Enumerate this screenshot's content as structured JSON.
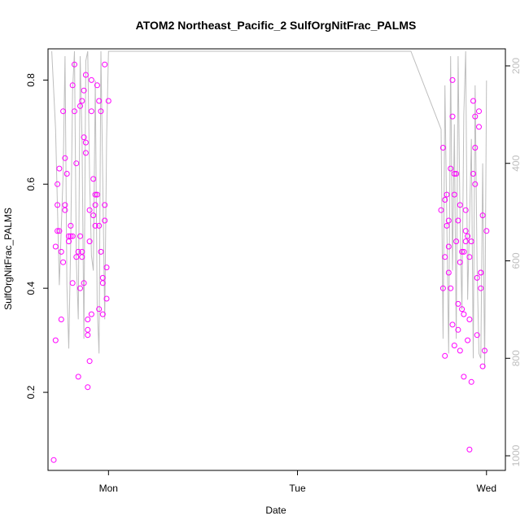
{
  "chart_data": {
    "type": "scatter",
    "title": "ATOM2 Northeast_Pacific_2 SulfOrgNitFrac_PALMS",
    "xlabel": "Date",
    "ylabel": "SulfOrgNitFrac_PALMS",
    "x_ticks": [
      {
        "value": 1.0,
        "label": "Mon"
      },
      {
        "value": 2.0,
        "label": "Tue"
      },
      {
        "value": 3.0,
        "label": "Wed"
      }
    ],
    "xlim": [
      0.68,
      3.1
    ],
    "ylim": [
      0.05,
      0.86
    ],
    "y_ticks": [
      0.2,
      0.4,
      0.6,
      0.8
    ],
    "y2_ticks": [
      200,
      400,
      600,
      800,
      1000
    ],
    "y2lim": [
      1030,
      165
    ],
    "point_color": "#ff00ff",
    "line_color": "#bebebe",
    "series": [
      {
        "kind": "points",
        "x": [
          0.71,
          0.72,
          0.72,
          0.73,
          0.73,
          0.73,
          0.74,
          0.74,
          0.75,
          0.75,
          0.76,
          0.76,
          0.77,
          0.77,
          0.77,
          0.78,
          0.79,
          0.79,
          0.8,
          0.8,
          0.81,
          0.81,
          0.82,
          0.82,
          0.83,
          0.83,
          0.84,
          0.85,
          0.85,
          0.86,
          0.86,
          0.87,
          0.87,
          0.88,
          0.88,
          0.89,
          0.89,
          0.89,
          0.9,
          0.9,
          0.91,
          0.91,
          0.91,
          0.92,
          0.92,
          0.93,
          0.93,
          0.94,
          0.94,
          0.95,
          0.95,
          0.96,
          0.96,
          0.97,
          0.97,
          0.97,
          0.98,
          0.98,
          0.99,
          0.99,
          1.0,
          0.88,
          0.87,
          0.89,
          0.9,
          0.86,
          0.85,
          0.95,
          0.84,
          0.98,
          0.93,
          0.81
        ],
        "y": [
          0.07,
          0.3,
          0.48,
          0.51,
          0.56,
          0.6,
          0.63,
          0.51,
          0.47,
          0.34,
          0.45,
          0.74,
          0.65,
          0.56,
          0.55,
          0.62,
          0.5,
          0.49,
          0.5,
          0.52,
          0.41,
          0.79,
          0.83,
          0.74,
          0.46,
          0.64,
          0.23,
          0.75,
          0.5,
          0.76,
          0.46,
          0.78,
          0.69,
          0.68,
          0.66,
          0.34,
          0.21,
          0.31,
          0.55,
          0.49,
          0.8,
          0.74,
          0.35,
          0.61,
          0.54,
          0.52,
          0.58,
          0.58,
          0.79,
          0.76,
          0.52,
          0.47,
          0.74,
          0.41,
          0.42,
          0.35,
          0.53,
          0.56,
          0.44,
          0.38,
          0.76,
          0.81,
          0.41,
          0.32,
          0.26,
          0.47,
          0.4,
          0.36,
          0.47,
          0.83,
          0.56,
          0.5
        ]
      },
      {
        "kind": "points",
        "x": [
          2.76,
          2.77,
          2.77,
          2.78,
          2.78,
          2.79,
          2.79,
          2.8,
          2.8,
          2.81,
          2.81,
          2.82,
          2.82,
          2.83,
          2.83,
          2.84,
          2.84,
          2.85,
          2.85,
          2.86,
          2.86,
          2.87,
          2.87,
          2.88,
          2.88,
          2.89,
          2.89,
          2.9,
          2.9,
          2.91,
          2.91,
          2.92,
          2.92,
          2.93,
          2.93,
          2.94,
          2.94,
          2.95,
          2.95,
          2.96,
          2.96,
          2.97,
          2.97,
          2.98,
          2.98,
          2.99,
          3.0,
          2.78,
          2.8,
          2.83,
          2.86,
          2.89,
          2.91,
          2.94,
          2.97,
          2.82,
          2.85,
          2.88
        ],
        "y": [
          0.55,
          0.4,
          0.67,
          0.46,
          0.27,
          0.52,
          0.58,
          0.43,
          0.48,
          0.63,
          0.4,
          0.8,
          0.73,
          0.62,
          0.29,
          0.49,
          0.62,
          0.53,
          0.32,
          0.28,
          0.56,
          0.36,
          0.47,
          0.35,
          0.47,
          0.49,
          0.51,
          0.5,
          0.3,
          0.34,
          0.09,
          0.22,
          0.49,
          0.76,
          0.62,
          0.67,
          0.73,
          0.31,
          0.42,
          0.71,
          0.74,
          0.4,
          0.43,
          0.25,
          0.54,
          0.28,
          0.51,
          0.57,
          0.53,
          0.58,
          0.45,
          0.55,
          0.46,
          0.6,
          0.43,
          0.33,
          0.37,
          0.23
        ]
      },
      {
        "kind": "line",
        "x": [
          0.7,
          0.72,
          0.74,
          0.76,
          0.77,
          0.78,
          0.79,
          0.8,
          0.81,
          0.82,
          0.83,
          0.84,
          0.85,
          0.86,
          0.87,
          0.88,
          0.89,
          0.9,
          0.91,
          0.92,
          0.93,
          0.94,
          0.95,
          0.96,
          0.97,
          0.98,
          0.99,
          1.0,
          1.05,
          1.4,
          1.8,
          2.2,
          2.6,
          2.76,
          2.77,
          2.78,
          2.79,
          2.8,
          2.81,
          2.82,
          2.83,
          2.84,
          2.85,
          2.86,
          2.87,
          2.88,
          2.89,
          2.9,
          2.91,
          2.92,
          2.93,
          2.94,
          2.95,
          2.96,
          2.97,
          2.98,
          2.99,
          3.0
        ],
        "y": [
          170,
          330,
          650,
          420,
          180,
          650,
          780,
          560,
          250,
          170,
          600,
          720,
          180,
          350,
          760,
          190,
          170,
          430,
          590,
          620,
          230,
          690,
          790,
          170,
          440,
          720,
          350,
          170,
          170,
          170,
          170,
          170,
          170,
          330,
          760,
          240,
          520,
          790,
          180,
          620,
          320,
          760,
          180,
          520,
          700,
          300,
          170,
          680,
          520,
          350,
          800,
          240,
          610,
          790,
          800,
          400,
          820,
          230
        ]
      }
    ]
  }
}
